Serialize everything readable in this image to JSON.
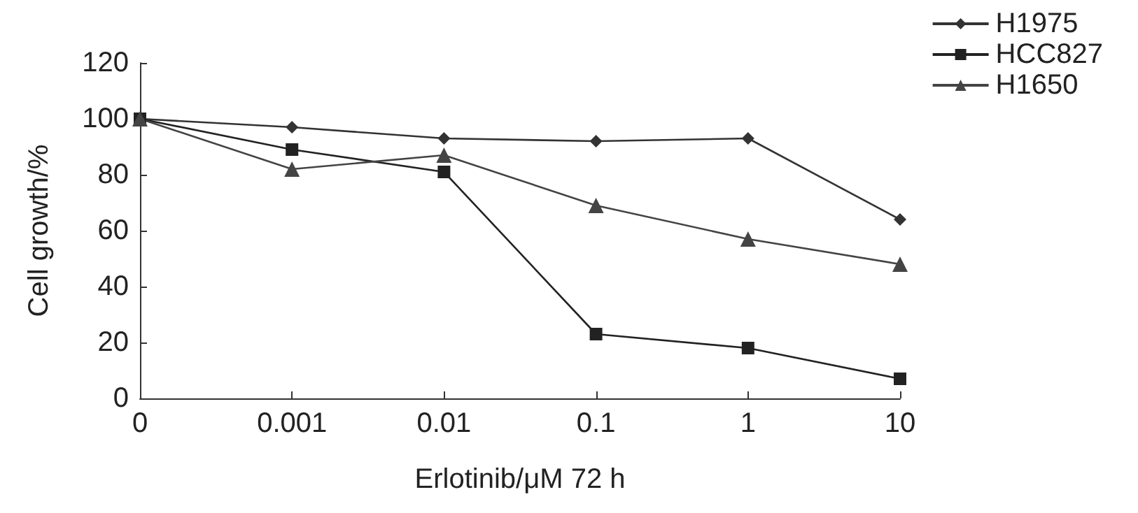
{
  "chart_data": {
    "type": "line",
    "xlabel": "Erlotinib/μM 72 h",
    "ylabel": "Cell growth/%",
    "categories": [
      "0",
      "0.001",
      "0.01",
      "0.1",
      "1",
      "10"
    ],
    "series": [
      {
        "name": "H1975",
        "color": "#333333",
        "marker": "diamond",
        "values": [
          100,
          97,
          93,
          92,
          93,
          64
        ]
      },
      {
        "name": "HCC827",
        "color": "#222222",
        "marker": "square",
        "values": [
          100,
          89,
          81,
          23,
          18,
          7
        ]
      },
      {
        "name": "H1650",
        "color": "#444444",
        "marker": "triangle",
        "values": [
          100,
          82,
          87,
          69,
          57,
          48
        ]
      }
    ],
    "ylim": [
      0,
      120
    ],
    "yticks": [
      0,
      20,
      40,
      60,
      80,
      100,
      120
    ],
    "grid": false,
    "legend": "top right",
    "line_style": "solid"
  }
}
